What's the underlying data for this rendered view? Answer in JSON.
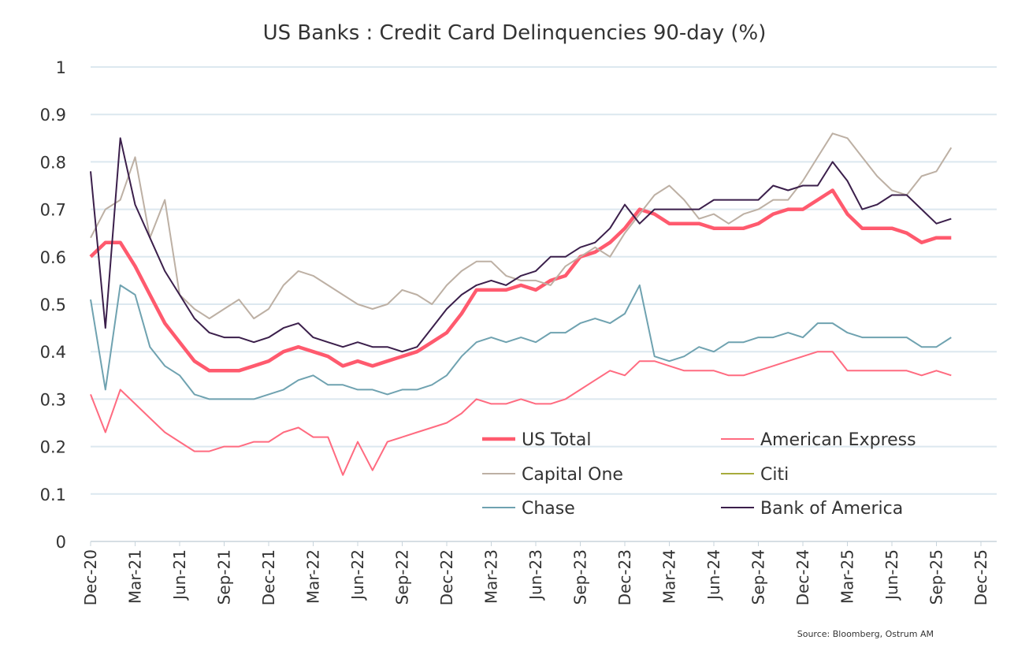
{
  "chart_data": {
    "type": "line",
    "title": "US Banks : Credit Card Delinquencies 90-day (%)",
    "source": "Source: Bloomberg, Ostrum AM",
    "ylim": [
      0,
      1
    ],
    "yticks": [
      "0",
      "0.1",
      "0.2",
      "0.3",
      "0.4",
      "0.5",
      "0.6",
      "0.7",
      "0.8",
      "0.9",
      "1"
    ],
    "xticks": [
      "Dec-20",
      "Mar-21",
      "Jun-21",
      "Sep-21",
      "Dec-21",
      "Mar-22",
      "Jun-22",
      "Sep-22",
      "Dec-22",
      "Mar-23",
      "Jun-23",
      "Sep-23",
      "Dec-23",
      "Mar-24",
      "Jun-24",
      "Sep-24",
      "Dec-24",
      "Mar-25",
      "Jun-25",
      "Sep-25",
      "Dec-25"
    ],
    "x_range": [
      "Dec-20",
      "Dec-25"
    ],
    "x_start": "Dec-20",
    "frequency": "monthly",
    "grid": "horizontal",
    "legend_placement": "bottom-right inside",
    "series": [
      {
        "name": "US Total",
        "color": "#ff5a6e",
        "values": [
          0.6,
          0.63,
          0.63,
          0.58,
          0.52,
          0.46,
          0.42,
          0.38,
          0.36,
          0.36,
          0.36,
          0.37,
          0.38,
          0.4,
          0.41,
          0.4,
          0.39,
          0.37,
          0.38,
          0.37,
          0.38,
          0.39,
          0.4,
          0.42,
          0.44,
          0.48,
          0.53,
          0.53,
          0.53,
          0.54,
          0.53,
          0.55,
          0.56,
          0.6,
          0.61,
          0.63,
          0.66,
          0.7,
          0.69,
          0.67,
          0.67,
          0.67,
          0.66,
          0.66,
          0.66,
          0.67,
          0.69,
          0.7,
          0.7,
          0.72,
          0.74,
          0.69,
          0.66,
          0.66,
          0.66,
          0.65,
          0.63,
          0.64,
          0.64
        ]
      },
      {
        "name": "American Express",
        "color": "#ff6b80",
        "values": [
          0.31,
          0.23,
          0.32,
          0.29,
          0.26,
          0.23,
          0.21,
          0.19,
          0.19,
          0.2,
          0.2,
          0.21,
          0.21,
          0.23,
          0.24,
          0.22,
          0.22,
          0.14,
          0.21,
          0.15,
          0.21,
          0.22,
          0.23,
          0.24,
          0.25,
          0.27,
          0.3,
          0.29,
          0.29,
          0.3,
          0.29,
          0.29,
          0.3,
          0.32,
          0.34,
          0.36,
          0.35,
          0.38,
          0.38,
          0.37,
          0.36,
          0.36,
          0.36,
          0.35,
          0.35,
          0.36,
          0.37,
          0.38,
          0.39,
          0.4,
          0.4,
          0.36,
          0.36,
          0.36,
          0.36,
          0.36,
          0.35,
          0.36,
          0.35
        ]
      },
      {
        "name": "Capital One",
        "color": "#bdb0a4",
        "values": [
          0.64,
          0.7,
          0.72,
          0.81,
          0.64,
          0.72,
          0.52,
          0.49,
          0.47,
          0.49,
          0.51,
          0.47,
          0.49,
          0.54,
          0.57,
          0.56,
          0.54,
          0.52,
          0.5,
          0.49,
          0.5,
          0.53,
          0.52,
          0.5,
          0.54,
          0.57,
          0.59,
          0.59,
          0.56,
          0.55,
          0.55,
          0.54,
          0.58,
          0.6,
          0.62,
          0.6,
          0.65,
          0.69,
          0.73,
          0.75,
          0.72,
          0.68,
          0.69,
          0.67,
          0.69,
          0.7,
          0.72,
          0.72,
          0.76,
          0.81,
          0.86,
          0.85,
          0.81,
          0.77,
          0.74,
          0.73,
          0.77,
          0.78,
          0.83
        ]
      },
      {
        "name": "Citi",
        "color": "#a7ab3c",
        "values": []
      },
      {
        "name": "Chase",
        "color": "#6fa2b0",
        "values": [
          0.51,
          0.32,
          0.54,
          0.52,
          0.41,
          0.37,
          0.35,
          0.31,
          0.3,
          0.3,
          0.3,
          0.3,
          0.31,
          0.32,
          0.34,
          0.35,
          0.33,
          0.33,
          0.32,
          0.32,
          0.31,
          0.32,
          0.32,
          0.33,
          0.35,
          0.39,
          0.42,
          0.43,
          0.42,
          0.43,
          0.42,
          0.44,
          0.44,
          0.46,
          0.47,
          0.46,
          0.48,
          0.54,
          0.39,
          0.38,
          0.39,
          0.41,
          0.4,
          0.42,
          0.42,
          0.43,
          0.43,
          0.44,
          0.43,
          0.46,
          0.46,
          0.44,
          0.43,
          0.43,
          0.43,
          0.43,
          0.41,
          0.41,
          0.43
        ]
      },
      {
        "name": "Bank of America",
        "color": "#3b1f4b",
        "values": [
          0.78,
          0.45,
          0.85,
          0.71,
          0.64,
          0.57,
          0.52,
          0.47,
          0.44,
          0.43,
          0.43,
          0.42,
          0.43,
          0.45,
          0.46,
          0.43,
          0.42,
          0.41,
          0.42,
          0.41,
          0.41,
          0.4,
          0.41,
          0.45,
          0.49,
          0.52,
          0.54,
          0.55,
          0.54,
          0.56,
          0.57,
          0.6,
          0.6,
          0.62,
          0.63,
          0.66,
          0.71,
          0.67,
          0.7,
          0.7,
          0.7,
          0.7,
          0.72,
          0.72,
          0.72,
          0.72,
          0.75,
          0.74,
          0.75,
          0.75,
          0.8,
          0.76,
          0.7,
          0.71,
          0.73,
          0.73,
          0.7,
          0.67,
          0.68
        ]
      }
    ]
  }
}
